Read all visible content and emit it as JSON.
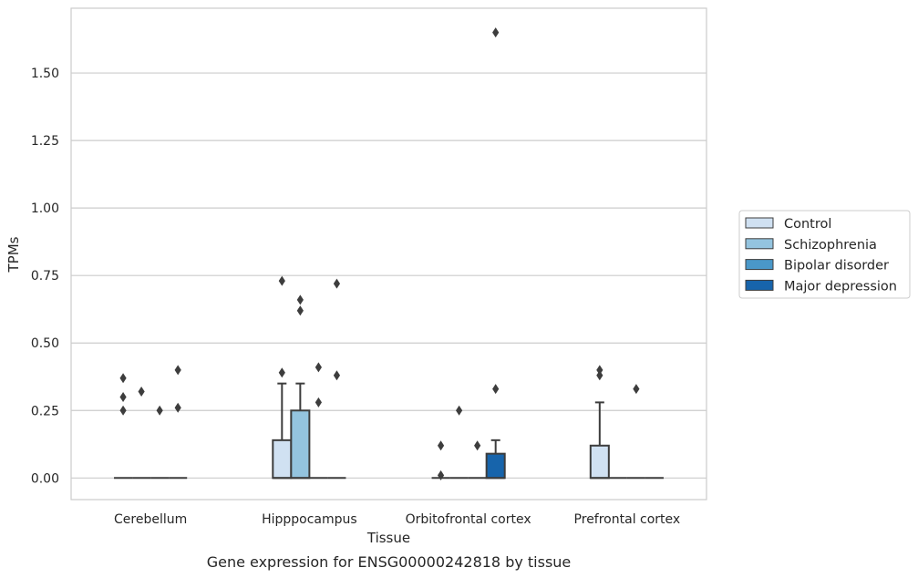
{
  "chart_data": {
    "type": "box",
    "caption": "Gene expression for ENSG00000242818 by tissue",
    "xlabel": "Tissue",
    "ylabel": "TPMs",
    "ylim": [
      -0.08,
      1.74
    ],
    "yticks": [
      "0.00",
      "0.25",
      "0.50",
      "0.75",
      "1.00",
      "1.25",
      "1.50"
    ],
    "grid": "horizontal",
    "legend_position": "right",
    "categories": [
      "Cerebellum",
      "Hipppocampus",
      "Orbitofrontal cortex",
      "Prefrontal cortex"
    ],
    "series": [
      {
        "name": "Control",
        "color": "#d0e1f2",
        "boxes": [
          {
            "q1": 0,
            "median": 0,
            "q3": 0,
            "whisker_low": 0,
            "whisker_high": 0,
            "outliers": [
              0.25,
              0.3,
              0.37
            ]
          },
          {
            "q1": 0,
            "median": 0,
            "q3": 0.14,
            "whisker_low": 0,
            "whisker_high": 0.35,
            "outliers": [
              0.39,
              0.73
            ]
          },
          {
            "q1": 0,
            "median": 0,
            "q3": 0,
            "whisker_low": 0,
            "whisker_high": 0,
            "outliers": [
              0.01,
              0.12
            ]
          },
          {
            "q1": 0,
            "median": 0,
            "q3": 0.12,
            "whisker_low": 0,
            "whisker_high": 0.28,
            "outliers": [
              0.38,
              0.4
            ]
          }
        ]
      },
      {
        "name": "Schizophrenia",
        "color": "#94c4df",
        "boxes": [
          {
            "q1": 0,
            "median": 0,
            "q3": 0,
            "whisker_low": 0,
            "whisker_high": 0,
            "outliers": [
              0.32
            ]
          },
          {
            "q1": 0,
            "median": 0,
            "q3": 0.25,
            "whisker_low": 0,
            "whisker_high": 0.35,
            "outliers": [
              0.62,
              0.66
            ]
          },
          {
            "q1": 0,
            "median": 0,
            "q3": 0,
            "whisker_low": 0,
            "whisker_high": 0,
            "outliers": [
              0.25
            ]
          },
          {
            "q1": 0,
            "median": 0,
            "q3": 0,
            "whisker_low": 0,
            "whisker_high": 0,
            "outliers": []
          }
        ]
      },
      {
        "name": "Bipolar disorder",
        "color": "#4a98c9",
        "boxes": [
          {
            "q1": 0,
            "median": 0,
            "q3": 0,
            "whisker_low": 0,
            "whisker_high": 0,
            "outliers": [
              0.25
            ]
          },
          {
            "q1": 0,
            "median": 0,
            "q3": 0,
            "whisker_low": 0,
            "whisker_high": 0,
            "outliers": [
              0.28,
              0.41
            ]
          },
          {
            "q1": 0,
            "median": 0,
            "q3": 0,
            "whisker_low": 0,
            "whisker_high": 0,
            "outliers": [
              0.12
            ]
          },
          {
            "q1": 0,
            "median": 0,
            "q3": 0,
            "whisker_low": 0,
            "whisker_high": 0,
            "outliers": [
              0.33
            ]
          }
        ]
      },
      {
        "name": "Major depression",
        "color": "#1764ab",
        "boxes": [
          {
            "q1": 0,
            "median": 0,
            "q3": 0,
            "whisker_low": 0,
            "whisker_high": 0,
            "outliers": [
              0.26,
              0.4
            ]
          },
          {
            "q1": 0,
            "median": 0,
            "q3": 0,
            "whisker_low": 0,
            "whisker_high": 0,
            "outliers": [
              0.38,
              0.72
            ]
          },
          {
            "q1": 0,
            "median": 0,
            "q3": 0.09,
            "whisker_low": 0,
            "whisker_high": 0.14,
            "outliers": [
              0.33,
              1.65
            ]
          },
          {
            "q1": 0,
            "median": 0,
            "q3": 0,
            "whisker_low": 0,
            "whisker_high": 0,
            "outliers": []
          }
        ]
      }
    ]
  }
}
